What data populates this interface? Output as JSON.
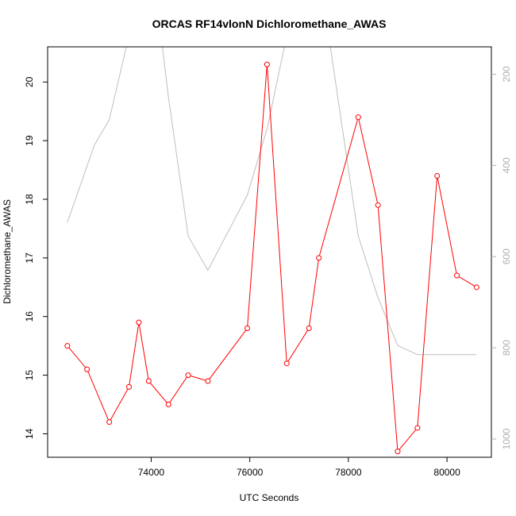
{
  "chart_data": {
    "type": "line",
    "title": "ORCAS RF14vlonN Dichloromethane_AWAS",
    "xlabel": "UTC Seconds",
    "ylabel": "Dichloromethane_AWAS",
    "xlim": [
      71900,
      80900
    ],
    "ylim": [
      13.6,
      20.6
    ],
    "y2lim": [
      1040,
      140
    ],
    "x_ticks": [
      74000,
      76000,
      78000,
      80000
    ],
    "y_ticks": [
      14,
      15,
      16,
      17,
      18,
      19,
      20
    ],
    "y2_ticks": [
      200,
      400,
      600,
      800,
      1000
    ],
    "grid": false,
    "series": [
      {
        "role": "primary",
        "color": "#ff0000",
        "marker": "open-circle",
        "x": [
          72300,
          72700,
          73150,
          73550,
          73750,
          73950,
          74350,
          74750,
          75150,
          75950,
          76350,
          76750,
          77200,
          77400,
          78200,
          78600,
          79000,
          79400,
          79800,
          80200,
          80600
        ],
        "y": [
          15.5,
          15.1,
          14.2,
          14.8,
          15.9,
          14.9,
          14.5,
          15.0,
          14.9,
          15.8,
          20.3,
          15.2,
          15.8,
          17.0,
          19.4,
          17.9,
          13.7,
          14.1,
          18.4,
          16.7,
          16.5
        ]
      },
      {
        "role": "secondary",
        "color": "#bebebe",
        "axis": "right",
        "x": [
          72300,
          72850,
          73150,
          73550,
          74200,
          74350,
          74750,
          75150,
          75950,
          76350,
          76750,
          77600,
          78200,
          78600,
          79000,
          79400,
          79800,
          80200,
          80600
        ],
        "y": [
          525,
          355,
          300,
          115,
          115,
          250,
          555,
          630,
          465,
          320,
          115,
          115,
          555,
          690,
          795,
          815,
          815,
          815,
          815
        ]
      }
    ]
  }
}
